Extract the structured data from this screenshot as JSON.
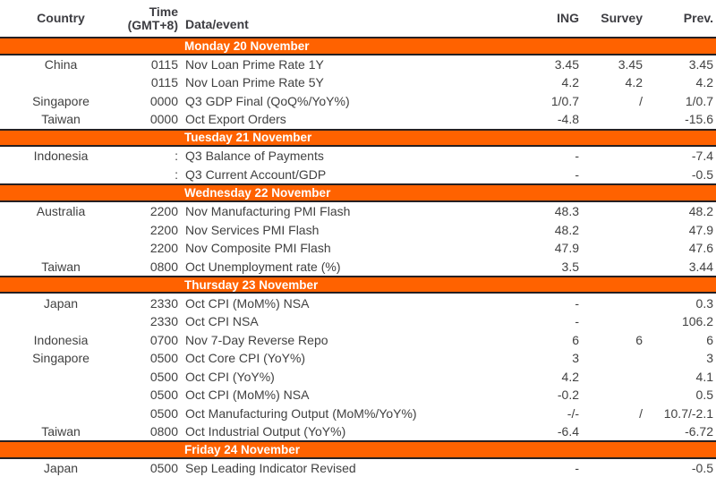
{
  "header": {
    "country": "Country",
    "time_line1": "Time",
    "time_line2": "(GMT+8)",
    "event": "Data/event",
    "ing": "ING",
    "survey": "Survey",
    "prev": "Prev."
  },
  "colors": {
    "accent_orange": "#FF6200",
    "bar_border": "#262022",
    "bar_text": "#FFFFFF",
    "body_text": "#414141"
  },
  "chart_data": {
    "type": "table",
    "columns": [
      "Country",
      "Time (GMT+8)",
      "Data/event",
      "ING",
      "Survey",
      "Prev."
    ],
    "sections": [
      {
        "title": "Monday 20 November",
        "rows": [
          {
            "country": "China",
            "time": "0115",
            "event": "Nov Loan Prime Rate 1Y",
            "ing": "3.45",
            "survey": "3.45",
            "prev": "3.45"
          },
          {
            "country": "",
            "time": "0115",
            "event": "Nov Loan Prime Rate 5Y",
            "ing": "4.2",
            "survey": "4.2",
            "prev": "4.2"
          },
          {
            "country": "Singapore",
            "time": "0000",
            "event": "Q3 GDP Final (QoQ%/YoY%)",
            "ing": "1/0.7",
            "survey": "/",
            "prev": "1/0.7"
          },
          {
            "country": "Taiwan",
            "time": "0000",
            "event": "Oct Export Orders",
            "ing": "-4.8",
            "survey": "",
            "prev": "-15.6"
          }
        ]
      },
      {
        "title": "Tuesday 21 November",
        "rows": [
          {
            "country": "Indonesia",
            "time": ":",
            "event": "Q3 Balance of Payments",
            "ing": "-",
            "survey": "",
            "prev": "-7.4"
          },
          {
            "country": "",
            "time": ":",
            "event": "Q3 Current Account/GDP",
            "ing": "-",
            "survey": "",
            "prev": "-0.5"
          }
        ]
      },
      {
        "title": "Wednesday 22 November",
        "rows": [
          {
            "country": "Australia",
            "time": "2200",
            "event": "Nov Manufacturing PMI Flash",
            "ing": "48.3",
            "survey": "",
            "prev": "48.2"
          },
          {
            "country": "",
            "time": "2200",
            "event": "Nov Services PMI Flash",
            "ing": "48.2",
            "survey": "",
            "prev": "47.9"
          },
          {
            "country": "",
            "time": "2200",
            "event": "Nov Composite PMI Flash",
            "ing": "47.9",
            "survey": "",
            "prev": "47.6"
          },
          {
            "country": "Taiwan",
            "time": "0800",
            "event": "Oct Unemployment rate (%)",
            "ing": "3.5",
            "survey": "",
            "prev": "3.44"
          }
        ]
      },
      {
        "title": "Thursday 23 November",
        "rows": [
          {
            "country": "Japan",
            "time": "2330",
            "event": "Oct CPI (MoM%) NSA",
            "ing": "-",
            "survey": "",
            "prev": "0.3"
          },
          {
            "country": "",
            "time": "2330",
            "event": "Oct CPI NSA",
            "ing": "-",
            "survey": "",
            "prev": "106.2"
          },
          {
            "country": "Indonesia",
            "time": "0700",
            "event": "Nov 7-Day Reverse Repo",
            "ing": "6",
            "survey": "6",
            "prev": "6"
          },
          {
            "country": "Singapore",
            "time": "0500",
            "event": "Oct Core CPI (YoY%)",
            "ing": "3",
            "survey": "",
            "prev": "3"
          },
          {
            "country": "",
            "time": "0500",
            "event": "Oct CPI (YoY%)",
            "ing": "4.2",
            "survey": "",
            "prev": "4.1"
          },
          {
            "country": "",
            "time": "0500",
            "event": "Oct CPI (MoM%) NSA",
            "ing": "-0.2",
            "survey": "",
            "prev": "0.5"
          },
          {
            "country": "",
            "time": "0500",
            "event": "Oct Manufacturing Output (MoM%/YoY%)",
            "ing": "-/-",
            "survey": "/",
            "prev": "10.7/-2.1"
          },
          {
            "country": "Taiwan",
            "time": "0800",
            "event": "Oct Industrial Output (YoY%)",
            "ing": "-6.4",
            "survey": "",
            "prev": "-6.72"
          }
        ]
      },
      {
        "title": "Friday 24 November",
        "rows": [
          {
            "country": "Japan",
            "time": "0500",
            "event": "Sep Leading Indicator Revised",
            "ing": "-",
            "survey": "",
            "prev": "-0.5"
          }
        ]
      }
    ]
  }
}
